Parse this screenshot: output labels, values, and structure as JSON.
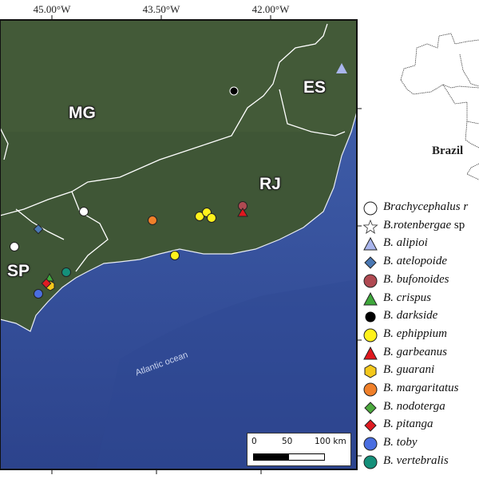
{
  "map": {
    "longitude_labels": [
      "45.00°W",
      "43.50°W",
      "42.00°W"
    ],
    "states": [
      "MG",
      "ES",
      "RJ",
      "SP"
    ],
    "ocean_label": "Atlantic ocean",
    "scale_bar": {
      "labels": [
        "0",
        "50",
        "100 km"
      ]
    },
    "inset_label": "Brazil",
    "colors": {
      "land": "#3d5535",
      "ocean": "#3a55a0",
      "borders": "#ffffff"
    }
  },
  "legend": [
    {
      "label": "Brachycephalus r",
      "suffix": "",
      "symbol": "circle",
      "color": "#ffffff"
    },
    {
      "label": "B.rotenbergae",
      "suffix": " sp",
      "symbol": "star",
      "color": "#ffffff"
    },
    {
      "label": "B. alipioi",
      "suffix": "",
      "symbol": "triangle",
      "color": "#a9b5ec"
    },
    {
      "label": "B. atelopoide",
      "suffix": "",
      "symbol": "diamond",
      "color": "#4a78b4"
    },
    {
      "label": "B. bufonoides",
      "suffix": "",
      "symbol": "circle",
      "color": "#b04a52"
    },
    {
      "label": "B. crispus",
      "suffix": "",
      "symbol": "triangle",
      "color": "#3fa83c"
    },
    {
      "label": "B. darkside",
      "suffix": "",
      "symbol": "circle-small",
      "color": "#000000"
    },
    {
      "label": "B. ephippium",
      "suffix": "",
      "symbol": "circle",
      "color": "#fff21c"
    },
    {
      "label": "B. garbeanus",
      "suffix": "",
      "symbol": "triangle",
      "color": "#e0181e"
    },
    {
      "label": "B. guarani",
      "suffix": "",
      "symbol": "hexagon",
      "color": "#f4c81c"
    },
    {
      "label": "B. margaritatus",
      "suffix": "",
      "symbol": "circle",
      "color": "#f0802a"
    },
    {
      "label": "B. nodoterga",
      "suffix": "",
      "symbol": "diamond",
      "color": "#4caa3e"
    },
    {
      "label": "B. pitanga",
      "suffix": "",
      "symbol": "diamond",
      "color": "#e01c22"
    },
    {
      "label": "B. toby",
      "suffix": "",
      "symbol": "circle",
      "color": "#4a6ee0"
    },
    {
      "label": "B. vertebralis",
      "suffix": "",
      "symbol": "circle",
      "color": "#15907a"
    }
  ]
}
